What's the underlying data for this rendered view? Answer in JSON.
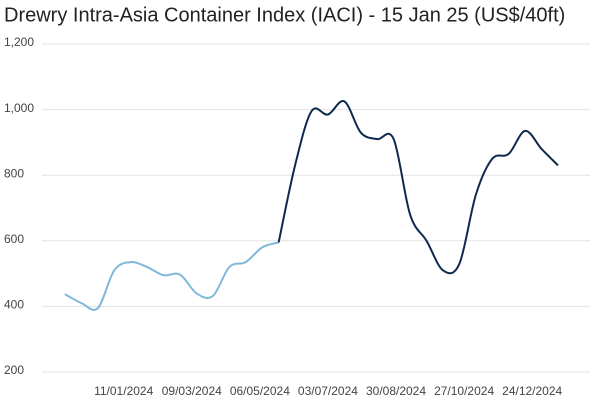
{
  "chart_data": {
    "type": "line",
    "title": "Drewry Intra-Asia Container Index (IACI) - 15 Jan 25 (US$/40ft)",
    "x": [
      "22/11/2023",
      "06/12/2023",
      "20/12/2023",
      "03/01/2024",
      "17/01/2024",
      "31/01/2024",
      "14/02/2024",
      "28/02/2024",
      "13/03/2024",
      "27/03/2024",
      "10/04/2024",
      "24/04/2024",
      "08/05/2024",
      "22/05/2024",
      "05/06/2024",
      "19/06/2024",
      "03/07/2024",
      "17/07/2024",
      "31/07/2024",
      "14/08/2024",
      "28/08/2024",
      "11/09/2024",
      "25/09/2024",
      "09/10/2024",
      "23/10/2024",
      "06/11/2024",
      "20/11/2024",
      "04/12/2024",
      "18/12/2024",
      "01/01/2025",
      "15/01/2025"
    ],
    "series": [
      {
        "color": "#7fb8d8",
        "values": [
          437,
          410,
          395,
          510,
          535,
          520,
          495,
          497,
          440,
          432,
          520,
          535,
          580,
          595,
          null,
          null,
          null,
          null,
          null,
          null,
          null,
          null,
          null,
          null,
          null,
          null,
          null,
          null,
          null,
          null,
          null
        ]
      },
      {
        "color": "#0d2a4e",
        "values": [
          null,
          null,
          null,
          null,
          null,
          null,
          null,
          null,
          null,
          null,
          null,
          null,
          null,
          595,
          830,
          995,
          985,
          1025,
          930,
          910,
          910,
          680,
          600,
          510,
          530,
          740,
          850,
          865,
          935,
          880,
          830
        ]
      }
    ],
    "xlim": [
      "22/11/2023",
      "15/01/2025"
    ],
    "xticks": [
      "11/01/2024",
      "09/03/2024",
      "06/05/2024",
      "03/07/2024",
      "30/08/2024",
      "27/10/2024",
      "24/12/2024"
    ],
    "ylim": [
      200,
      1200
    ],
    "yticks": [
      200,
      400,
      600,
      800,
      {
        "value": 1000,
        "label": "1,000"
      },
      {
        "value": 1200,
        "label": "1,200"
      }
    ],
    "grid": true
  }
}
